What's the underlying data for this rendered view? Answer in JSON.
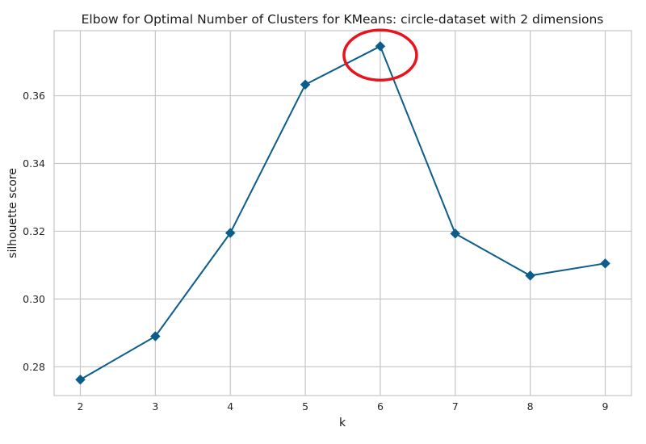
{
  "chart_data": {
    "type": "line",
    "title": "Elbow for Optimal Number of Clusters for KMeans: circle-dataset with 2 dimensions",
    "xlabel": "k",
    "ylabel": "silhouette score",
    "x": [
      2,
      3,
      4,
      5,
      6,
      7,
      8,
      9
    ],
    "y": [
      0.2762,
      0.289,
      0.3195,
      0.3633,
      0.3746,
      0.3193,
      0.3069,
      0.3105
    ],
    "xlim": [
      1.65,
      9.35
    ],
    "ylim": [
      0.2715,
      0.3792
    ],
    "x_ticks": [
      "2",
      "3",
      "4",
      "5",
      "6",
      "7",
      "8",
      "9"
    ],
    "y_ticks": [
      "0.28",
      "0.30",
      "0.32",
      "0.34",
      "0.36"
    ],
    "y_tick_values": [
      0.28,
      0.3,
      0.32,
      0.34,
      0.36
    ],
    "grid": true,
    "marker": "diamond",
    "line_color": "#0b5d8c",
    "grid_color": "#c6c6c6",
    "highlight": {
      "x": 6,
      "y": 0.3746,
      "shape": "ellipse",
      "color": "#e8131b"
    }
  }
}
